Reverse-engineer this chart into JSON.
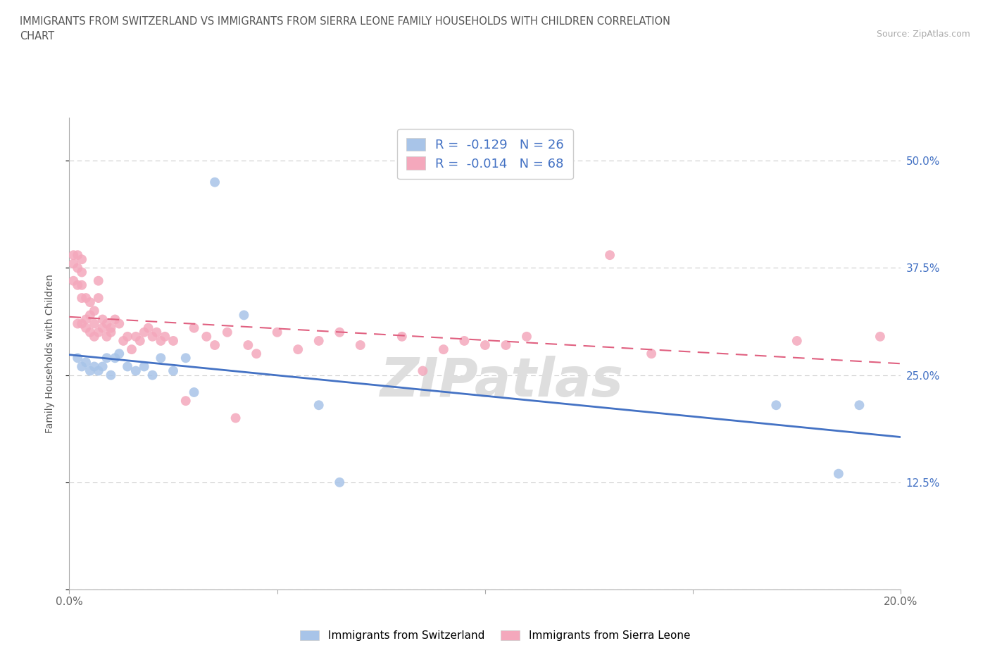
{
  "title": "IMMIGRANTS FROM SWITZERLAND VS IMMIGRANTS FROM SIERRA LEONE FAMILY HOUSEHOLDS WITH CHILDREN CORRELATION\nCHART",
  "source_text": "Source: ZipAtlas.com",
  "ylabel": "Family Households with Children",
  "xlim": [
    0.0,
    0.2
  ],
  "ylim": [
    0.0,
    0.55
  ],
  "yticks": [
    0.0,
    0.125,
    0.25,
    0.375,
    0.5
  ],
  "ytick_labels": [
    "",
    "12.5%",
    "25.0%",
    "37.5%",
    "50.0%"
  ],
  "xticks": [
    0.0,
    0.05,
    0.1,
    0.15,
    0.2
  ],
  "xtick_labels": [
    "0.0%",
    "",
    "",
    "",
    "20.0%"
  ],
  "switzerland_R": -0.129,
  "switzerland_N": 26,
  "sierraleone_R": -0.014,
  "sierraleone_N": 68,
  "legend_label1": "Immigrants from Switzerland",
  "legend_label2": "Immigrants from Sierra Leone",
  "switzerland_color": "#a8c4e8",
  "sierraleone_color": "#f4a8bc",
  "switzerland_line_color": "#4472c4",
  "sierraleone_line_color": "#e06080",
  "background_color": "#ffffff",
  "grid_color": "#cccccc",
  "watermark_text": "ZIPatlas",
  "sw_x": [
    0.002,
    0.003,
    0.004,
    0.005,
    0.006,
    0.007,
    0.008,
    0.009,
    0.01,
    0.011,
    0.012,
    0.014,
    0.016,
    0.018,
    0.02,
    0.022,
    0.025,
    0.028,
    0.03,
    0.035,
    0.042,
    0.06,
    0.065,
    0.17,
    0.185,
    0.19
  ],
  "sw_y": [
    0.27,
    0.26,
    0.265,
    0.255,
    0.26,
    0.255,
    0.26,
    0.27,
    0.25,
    0.27,
    0.275,
    0.26,
    0.255,
    0.26,
    0.25,
    0.27,
    0.255,
    0.27,
    0.23,
    0.475,
    0.32,
    0.215,
    0.125,
    0.215,
    0.135,
    0.215
  ],
  "sl_x": [
    0.001,
    0.001,
    0.001,
    0.002,
    0.002,
    0.002,
    0.002,
    0.003,
    0.003,
    0.003,
    0.003,
    0.003,
    0.004,
    0.004,
    0.004,
    0.005,
    0.005,
    0.005,
    0.006,
    0.006,
    0.006,
    0.007,
    0.007,
    0.007,
    0.008,
    0.008,
    0.009,
    0.009,
    0.01,
    0.01,
    0.011,
    0.012,
    0.013,
    0.014,
    0.015,
    0.016,
    0.017,
    0.018,
    0.019,
    0.02,
    0.021,
    0.022,
    0.023,
    0.025,
    0.028,
    0.03,
    0.033,
    0.035,
    0.038,
    0.04,
    0.043,
    0.045,
    0.05,
    0.055,
    0.06,
    0.065,
    0.07,
    0.08,
    0.085,
    0.09,
    0.095,
    0.1,
    0.105,
    0.11,
    0.13,
    0.14,
    0.175,
    0.195
  ],
  "sl_y": [
    0.39,
    0.38,
    0.36,
    0.39,
    0.375,
    0.355,
    0.31,
    0.385,
    0.37,
    0.355,
    0.34,
    0.31,
    0.34,
    0.315,
    0.305,
    0.335,
    0.32,
    0.3,
    0.325,
    0.31,
    0.295,
    0.36,
    0.34,
    0.3,
    0.315,
    0.305,
    0.31,
    0.295,
    0.3,
    0.305,
    0.315,
    0.31,
    0.29,
    0.295,
    0.28,
    0.295,
    0.29,
    0.3,
    0.305,
    0.295,
    0.3,
    0.29,
    0.295,
    0.29,
    0.22,
    0.305,
    0.295,
    0.285,
    0.3,
    0.2,
    0.285,
    0.275,
    0.3,
    0.28,
    0.29,
    0.3,
    0.285,
    0.295,
    0.255,
    0.28,
    0.29,
    0.285,
    0.285,
    0.295,
    0.39,
    0.275,
    0.29,
    0.295
  ]
}
